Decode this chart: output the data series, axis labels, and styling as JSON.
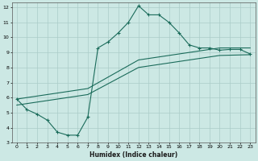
{
  "xlabel": "Humidex (Indice chaleur)",
  "bg_color": "#cce8e4",
  "grid_color": "#aaccc8",
  "line_color": "#1a6b5a",
  "xlim": [
    -0.5,
    23.5
  ],
  "ylim": [
    3,
    12.3
  ],
  "xticks": [
    0,
    1,
    2,
    3,
    4,
    5,
    6,
    7,
    8,
    9,
    10,
    11,
    12,
    13,
    14,
    15,
    16,
    17,
    18,
    19,
    20,
    21,
    22,
    23
  ],
  "yticks": [
    3,
    4,
    5,
    6,
    7,
    8,
    9,
    10,
    11,
    12
  ],
  "line1_x": [
    0,
    1,
    2,
    3,
    4,
    5,
    6,
    7,
    8,
    9,
    10,
    11,
    12,
    13,
    14,
    15,
    16,
    17,
    18,
    19,
    20,
    21,
    22,
    23
  ],
  "line1_y": [
    5.9,
    5.2,
    4.9,
    4.5,
    3.7,
    3.5,
    3.5,
    4.7,
    9.3,
    9.7,
    10.3,
    11.0,
    12.1,
    11.5,
    11.5,
    11.0,
    10.3,
    9.5,
    9.3,
    9.3,
    9.15,
    9.2,
    9.2,
    8.9
  ],
  "line2_x": [
    0,
    7,
    12,
    17,
    20,
    23
  ],
  "line2_y": [
    5.9,
    6.6,
    8.5,
    9.0,
    9.3,
    9.3
  ],
  "line3_x": [
    0,
    7,
    12,
    17,
    20,
    23
  ],
  "line3_y": [
    5.5,
    6.2,
    8.0,
    8.5,
    8.8,
    8.85
  ]
}
